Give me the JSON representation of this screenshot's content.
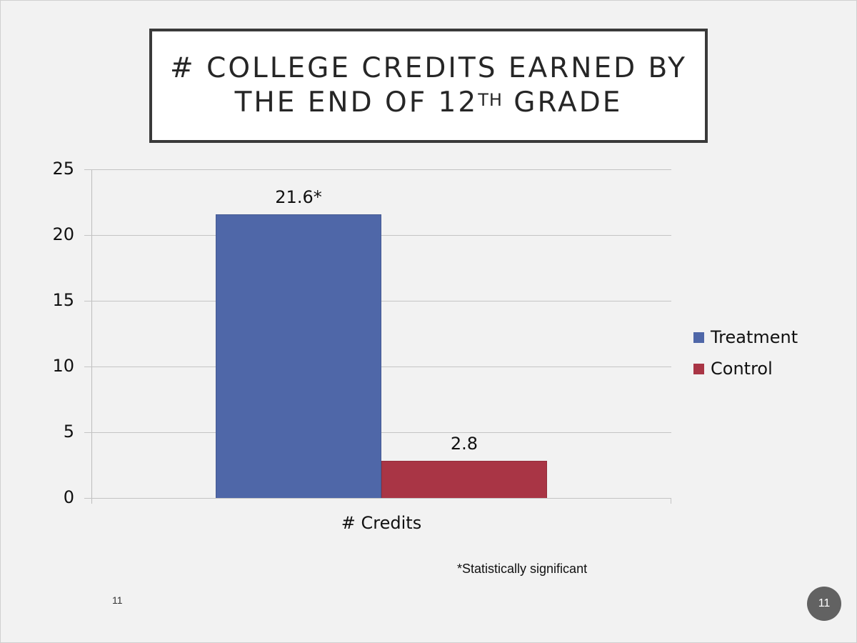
{
  "slide": {
    "title_line1": "# COLLEGE CREDITS EARNED BY",
    "title_line2_prefix": "THE END OF 12",
    "title_line2_sup": "TH",
    "title_line2_suffix": " GRADE",
    "footnote": "*Statistically significant",
    "footer_number": "11",
    "page_badge": "11",
    "background": "#f2f2f2"
  },
  "chart_data": {
    "type": "bar",
    "title": "# College Credits Earned by the End of 12th Grade",
    "categories": [
      "# Credits"
    ],
    "series": [
      {
        "name": "Treatment",
        "values": [
          21.6
        ],
        "label": "21.6*",
        "color": "#4f67a8"
      },
      {
        "name": "Control",
        "values": [
          2.8
        ],
        "label": "2.8",
        "color": "#a93545"
      }
    ],
    "xlabel": "",
    "ylabel": "",
    "ylim": [
      0,
      25
    ],
    "yticks": [
      "0",
      "5",
      "10",
      "15",
      "20",
      "25"
    ],
    "grid": true,
    "legend_position": "right",
    "annotations": [
      "*Statistically significant"
    ]
  }
}
